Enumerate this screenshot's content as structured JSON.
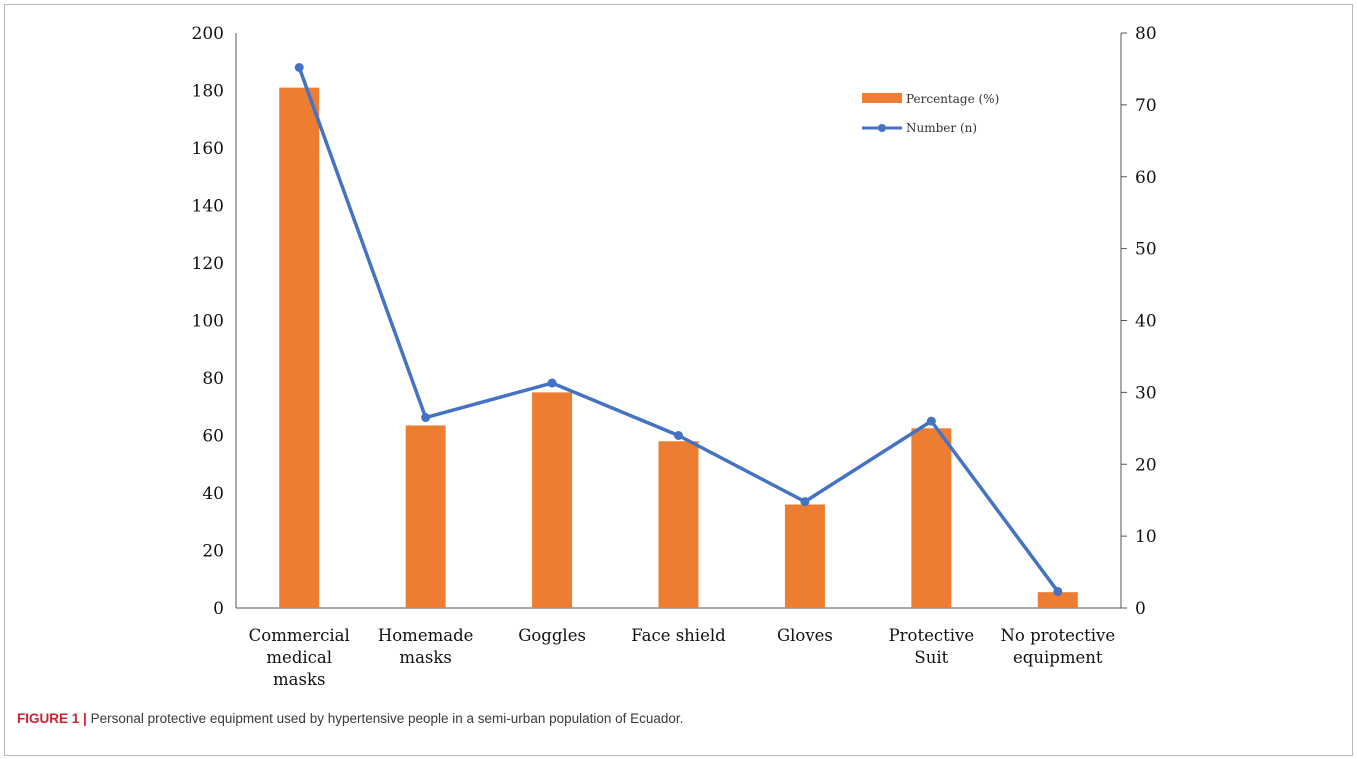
{
  "caption": {
    "figure_label": "FIGURE 1 |",
    "text": "Personal protective equipment used by hypertensive people in a semi-urban population of Ecuador."
  },
  "chart_data": {
    "type": "bar",
    "categories": [
      [
        "Commercial",
        "medical",
        "masks"
      ],
      [
        "Homemade",
        "masks"
      ],
      [
        "Goggles"
      ],
      [
        "Face shield"
      ],
      [
        "Gloves"
      ],
      [
        "Protective",
        "Suit"
      ],
      [
        "No protective",
        "equipment"
      ]
    ],
    "series": [
      {
        "name": "Percentage (%)",
        "type": "bar",
        "axis": "left",
        "color": "#ed7d31",
        "values": [
          181,
          63.5,
          75,
          58,
          36,
          62.5,
          5.5
        ]
      },
      {
        "name": "Number (n)",
        "type": "line",
        "axis": "right",
        "color": "#4472c4",
        "values": [
          75.2,
          26.5,
          31.3,
          24,
          14.8,
          26,
          2.3
        ]
      }
    ],
    "left_axis": {
      "min": 0,
      "max": 200,
      "ticks": [
        0,
        20,
        40,
        60,
        80,
        100,
        120,
        140,
        160,
        180,
        200
      ]
    },
    "right_axis": {
      "min": 0,
      "max": 80,
      "ticks": [
        0,
        10,
        20,
        30,
        40,
        50,
        60,
        70,
        80
      ]
    },
    "legend_position": "top-right",
    "grid": false
  }
}
